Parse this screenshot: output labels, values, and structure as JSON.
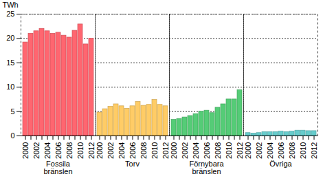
{
  "chart_data": {
    "type": "bar",
    "y_label": "TWh",
    "categories": [
      "2000",
      null,
      "2002",
      null,
      "2004",
      null,
      "2006",
      null,
      "2008",
      null,
      "2010",
      null,
      "2012"
    ],
    "series": [
      {
        "name": "Fossila bränslen",
        "color": "#ff6670",
        "values": [
          19.2,
          21.0,
          21.5,
          22.0,
          21.5,
          21.0,
          21.2,
          20.6,
          20.2,
          21.6,
          22.9,
          18.8,
          20.0
        ]
      },
      {
        "name": "Torv",
        "color": "#ffcc66",
        "values": [
          4.8,
          5.5,
          6.0,
          6.5,
          6.1,
          5.6,
          6.1,
          7.0,
          6.2,
          6.4,
          7.4,
          6.4,
          6.1
        ]
      },
      {
        "name": "Förnybara bränslen",
        "color": "#55cc77",
        "values": [
          3.3,
          3.5,
          3.8,
          4.1,
          4.5,
          5.0,
          5.2,
          4.7,
          5.8,
          6.5,
          7.5,
          7.5,
          9.4
        ]
      },
      {
        "name": "Övriga",
        "color": "#66cccc",
        "values": [
          0.6,
          0.5,
          0.6,
          0.8,
          0.8,
          0.8,
          0.9,
          0.8,
          0.9,
          1.1,
          1.1,
          1.0,
          1.0
        ]
      }
    ],
    "ylim": [
      0,
      25
    ],
    "yticks": [
      0,
      5,
      10,
      15,
      20,
      25
    ],
    "grid": true
  }
}
